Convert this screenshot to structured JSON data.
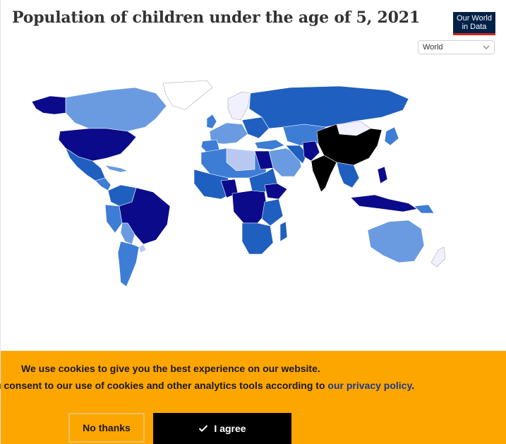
{
  "chart": {
    "title": "Population of children under the age of 5, 2021"
  },
  "logo": {
    "line1": "Our World",
    "line2": "in Data"
  },
  "region_select": {
    "selected": "World"
  },
  "cookie_banner": {
    "line1": "We use cookies to give you the best experience on our website.",
    "line2_prefix": "u consent to our use of cookies and other analytics tools according to",
    "privacy_link": "our privacy policy",
    "line2_suffix": ".",
    "no_thanks_label": "No thanks",
    "agree_label": "I agree",
    "agree_icon": "check-icon"
  },
  "colors": {
    "background": "#ffffff",
    "cookie_bar": "#fea600",
    "agree_button": "#000000",
    "link": "#1e3a8a",
    "map_darkest": "#000000",
    "map_navy": "#0a0a8a",
    "map_blue": "#1f5fbf",
    "map_mid": "#3d7dd6",
    "map_light": "#6a9be0",
    "map_lighter": "#b8c8f0",
    "map_palest": "#f0f0ff"
  }
}
